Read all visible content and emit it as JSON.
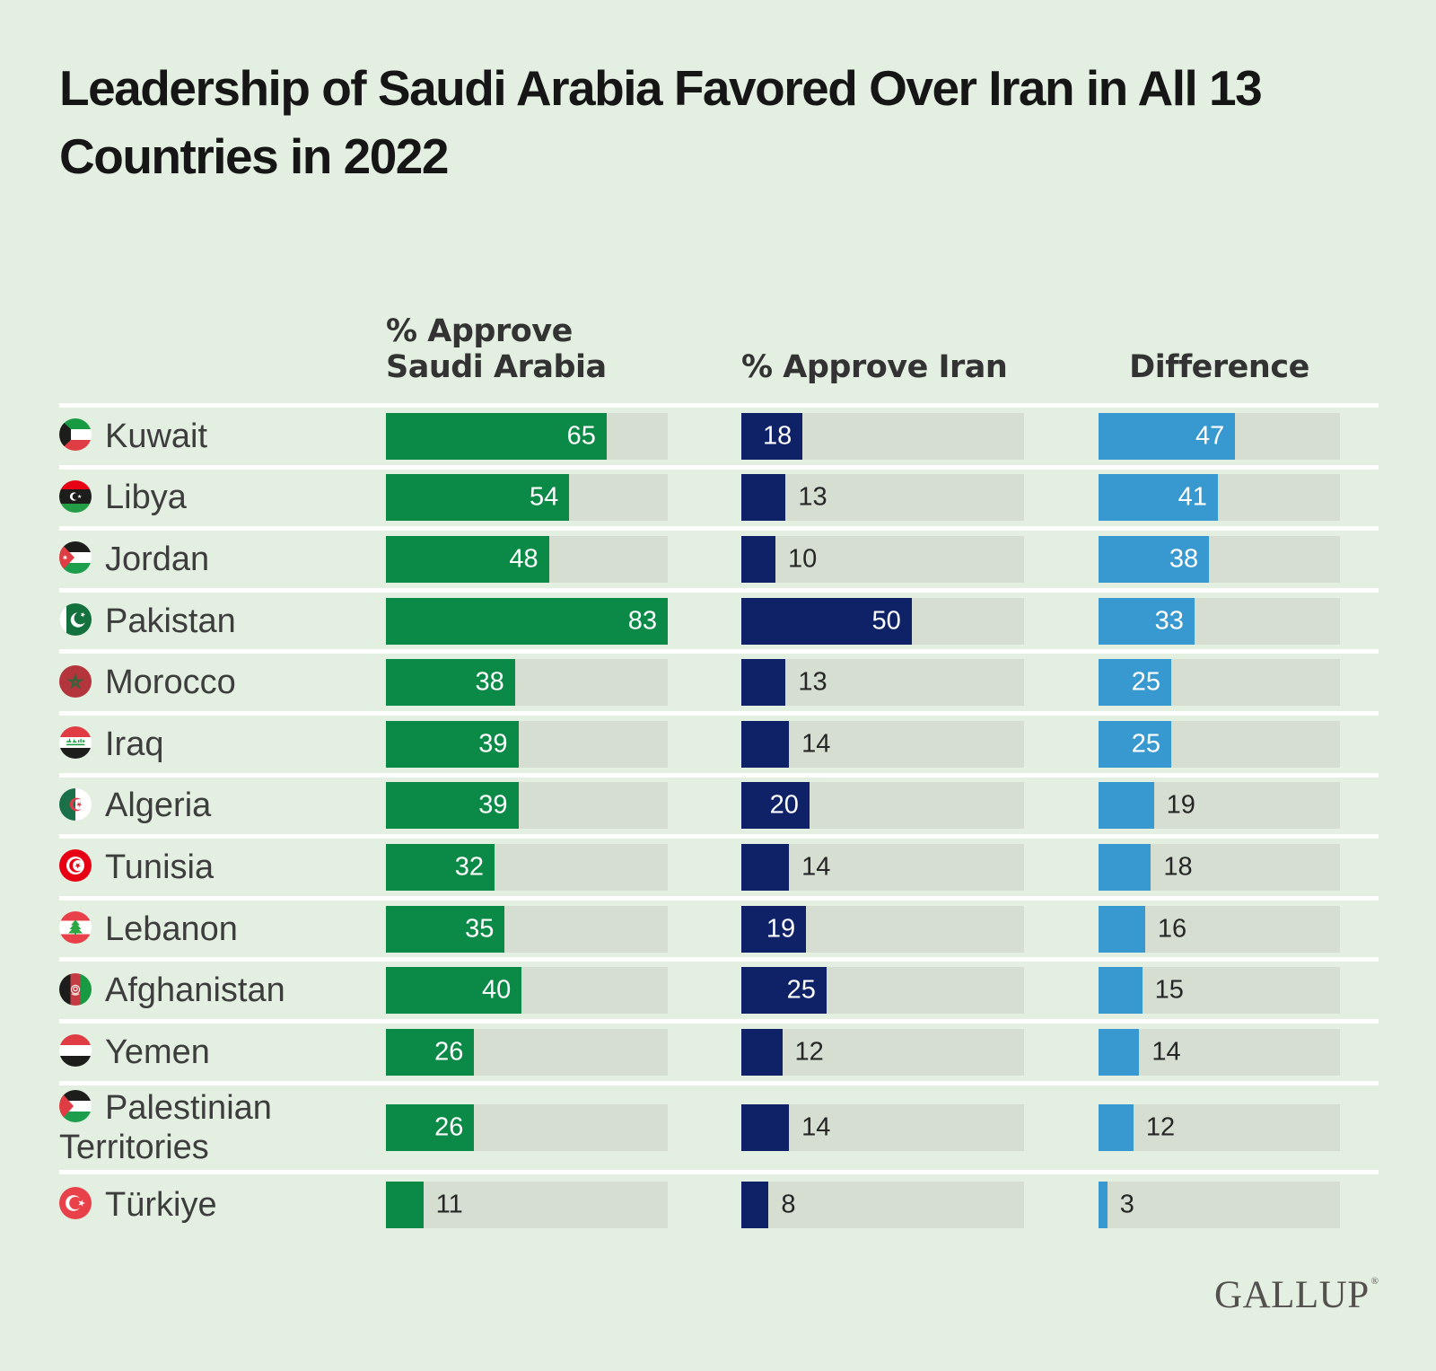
{
  "title": "Leadership of Saudi Arabia Favored Over Iran in All 13 Countries in 2022",
  "columns": {
    "saudi_label": "% Approve Saudi Arabia",
    "iran_label": "% Approve Iran",
    "diff_label": "Difference"
  },
  "chart_data": {
    "type": "bar",
    "title": "Leadership of Saudi Arabia Favored Over Iran in All 13 Countries in 2022",
    "categories": [
      "Kuwait",
      "Libya",
      "Jordan",
      "Pakistan",
      "Morocco",
      "Iraq",
      "Algeria",
      "Tunisia",
      "Lebanon",
      "Afghanistan",
      "Yemen",
      "Palestinian Territories",
      "Türkiye"
    ],
    "flags": [
      "flag-kuwait",
      "flag-libya",
      "flag-jordan",
      "flag-pakistan",
      "flag-morocco",
      "flag-iraq",
      "flag-algeria",
      "flag-tunisia",
      "flag-lebanon",
      "flag-afghanistan",
      "flag-yemen",
      "flag-palestinian-territories",
      "flag-turkiye"
    ],
    "series": [
      {
        "name": "% Approve Saudi Arabia",
        "values": [
          65,
          54,
          48,
          83,
          38,
          39,
          39,
          32,
          35,
          40,
          26,
          26,
          11
        ]
      },
      {
        "name": "% Approve Iran",
        "values": [
          18,
          13,
          10,
          50,
          13,
          14,
          20,
          14,
          19,
          25,
          12,
          14,
          8
        ]
      },
      {
        "name": "Difference",
        "values": [
          47,
          41,
          38,
          33,
          25,
          25,
          19,
          18,
          16,
          15,
          14,
          12,
          3
        ]
      }
    ],
    "xlim": [
      0,
      83
    ],
    "scale_max": 83,
    "orientation": "horizontal",
    "grid": false,
    "legend": false,
    "value_labels": "end-of-bar"
  },
  "colors": {
    "background": "#e3efe1",
    "track": "#d6ded2",
    "saudi_bar": "#0b8a47",
    "iran_bar": "#0f2268",
    "diff_bar": "#3899d0",
    "separator": "#ffffff",
    "title_text": "#161616",
    "header_text": "#333333",
    "label_text": "#3d3d3d",
    "value_inside_text": "#ffffff",
    "value_outside_text": "#262626",
    "logo_text": "#53504d"
  },
  "footer": {
    "logo": "GALLUP",
    "registered_mark": "®"
  }
}
